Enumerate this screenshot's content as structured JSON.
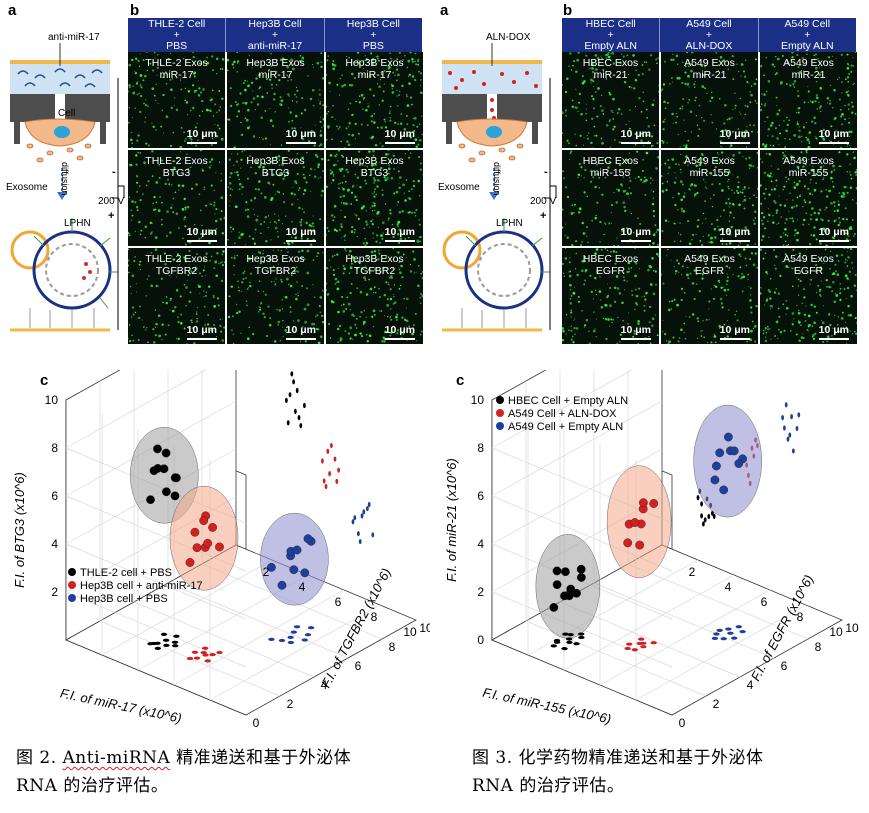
{
  "left_figure": {
    "panel_a_letter": "a",
    "panel_b_letter": "b",
    "panel_c_letter": "c",
    "schematic": {
      "top_label": "anti-miR-17",
      "cell_label": "Cell",
      "diffusion_label": "diffusion",
      "exosome_label": "Exosome",
      "lphn_label": "LPHN",
      "voltage_label": "200 V",
      "minus": "-",
      "plus": "+"
    },
    "column_headers": [
      {
        "line1": "THLE-2 Cell",
        "line2": "+",
        "line3": "PBS"
      },
      {
        "line1": "Hep3B Cell",
        "line2": "+",
        "line3": "anti-miR-17"
      },
      {
        "line1": "Hep3B Cell",
        "line2": "+",
        "line3": "PBS"
      }
    ],
    "tiles": [
      [
        {
          "l1": "THLE-2 Exos",
          "l2": "miR-17"
        },
        {
          "l1": "Hep3B Exos",
          "l2": "miR-17"
        },
        {
          "l1": "Hep3B Exos",
          "l2": "miR-17"
        }
      ],
      [
        {
          "l1": "THLE-2 Exos",
          "l2": "BTG3"
        },
        {
          "l1": "Hep3B Exos",
          "l2": "BTG3"
        },
        {
          "l1": "Hep3B Exos",
          "l2": "BTG3"
        }
      ],
      [
        {
          "l1": "THLE-2 Exos",
          "l2": "TGFBR2"
        },
        {
          "l1": "Hep3B Exos",
          "l2": "TGFBR2"
        },
        {
          "l1": "Hep3B Exos",
          "l2": "TGFBR2"
        }
      ]
    ],
    "scale_bar": "10 μm",
    "caption_prefix": "图  2. ",
    "caption_term": "Anti-miRNA",
    "caption_rest": " 精准递送和基于外泌体",
    "caption_line2": "RNA 的治疗评估。"
  },
  "right_figure": {
    "panel_a_letter": "a",
    "panel_b_letter": "b",
    "panel_c_letter": "c",
    "schematic": {
      "top_label": "ALN-DOX",
      "diffusion_label": "diffusion",
      "exosome_label": "Exosome",
      "lphn_label": "LPHN",
      "voltage_label": "200 V",
      "minus": "-",
      "plus": "+"
    },
    "column_headers": [
      {
        "line1": "HBEC Cell",
        "line2": "+",
        "line3": "Empty ALN"
      },
      {
        "line1": "A549 Cell",
        "line2": "+",
        "line3": "ALN-DOX"
      },
      {
        "line1": "A549 Cell",
        "line2": "+",
        "line3": "Empty ALN"
      }
    ],
    "tiles": [
      [
        {
          "l1": "HBEC Exos",
          "l2": "miR-21"
        },
        {
          "l1": "A549 Exos",
          "l2": "miR-21"
        },
        {
          "l1": "A549 Exos",
          "l2": "miR-21"
        }
      ],
      [
        {
          "l1": "HBEC Exos",
          "l2": "miR-155"
        },
        {
          "l1": "A549 Exos",
          "l2": "miR-155"
        },
        {
          "l1": "A549 Exos",
          "l2": "miR-155"
        }
      ],
      [
        {
          "l1": "HBEC Exos",
          "l2": "EGFR"
        },
        {
          "l1": "A549 Exos",
          "l2": "EGFR"
        },
        {
          "l1": "A549 Exos",
          "l2": "EGFR"
        }
      ]
    ],
    "scale_bar": "10 μm",
    "caption_line1": "图  3. 化学药物精准递送和基于外泌体",
    "caption_line2": "RNA 的治疗评估。"
  },
  "chart_data": [
    {
      "type": "scatter",
      "subtype": "3d-scatter",
      "title": "",
      "xlabel": "F.I. of miR-17 (x10^6)",
      "ylabel": "F.I. of TGFBR2 (x10^6)",
      "zlabel": "F.I. of BTG3 (x10^6)",
      "xlim": [
        0,
        10
      ],
      "ylim": [
        0,
        10
      ],
      "zlim": [
        0,
        10
      ],
      "x_ticks": [
        "2",
        "4",
        "6",
        "8",
        "10"
      ],
      "y_ticks": [
        "0",
        "2",
        "4",
        "6",
        "8",
        "10"
      ],
      "z_ticks": [
        "2",
        "4",
        "6",
        "8",
        "10"
      ],
      "legend_position": "left",
      "grid": true,
      "series": [
        {
          "name": "THLE-2 cell + PBS",
          "color": "#000000",
          "points": [
            [
              3,
              2,
              7.2
            ],
            [
              3.2,
              2.5,
              7.8
            ],
            [
              3.5,
              2.2,
              6.4
            ],
            [
              2.8,
              2.8,
              6.9
            ],
            [
              3.4,
              1.8,
              7.5
            ],
            [
              3.6,
              2.6,
              6.1
            ],
            [
              3.1,
              2.1,
              8.1
            ],
            [
              3.3,
              3,
              6.6
            ],
            [
              3.8,
              2.4,
              7.0
            ],
            [
              2.9,
              1.9,
              6.0
            ]
          ]
        },
        {
          "name": "Hep3B cell + anti-miR-17",
          "color": "#d42020",
          "points": [
            [
              4.8,
              2.5,
              5.0
            ],
            [
              5.2,
              2.2,
              4.6
            ],
            [
              5.5,
              2.8,
              5.3
            ],
            [
              4.9,
              3.0,
              4.2
            ],
            [
              5.3,
              2.6,
              5.8
            ],
            [
              5.7,
              2.3,
              4.9
            ],
            [
              5.0,
              2.0,
              4.0
            ],
            [
              5.6,
              3.1,
              4.4
            ],
            [
              5.1,
              2.7,
              5.5
            ]
          ]
        },
        {
          "name": "Hep3B cell + PBS",
          "color": "#1f3f9c",
          "points": [
            [
              6.5,
              5.2,
              3.0
            ],
            [
              7.0,
              5.8,
              3.4
            ],
            [
              6.8,
              6.2,
              2.6
            ],
            [
              7.3,
              5.5,
              3.8
            ],
            [
              6.6,
              6.6,
              3.2
            ],
            [
              7.6,
              6.0,
              2.8
            ],
            [
              7.1,
              6.9,
              3.6
            ],
            [
              6.9,
              5.4,
              2.3
            ],
            [
              7.4,
              6.4,
              4.0
            ]
          ]
        }
      ]
    },
    {
      "type": "scatter",
      "subtype": "3d-scatter",
      "title": "",
      "xlabel": "F.I. of miR-155 (x10^6)",
      "ylabel": "F.I. of EGFR (x10^6)",
      "zlabel": "F.I. of miR-21 (x10^6)",
      "xlim": [
        0,
        10
      ],
      "ylim": [
        0,
        10
      ],
      "zlim": [
        0,
        10
      ],
      "x_ticks": [
        "2",
        "4",
        "6",
        "8",
        "10"
      ],
      "y_ticks": [
        "0",
        "2",
        "4",
        "6",
        "8",
        "10"
      ],
      "z_ticks": [
        "0",
        "2",
        "4",
        "6",
        "8",
        "10"
      ],
      "legend_position": "top-left",
      "grid": true,
      "series": [
        {
          "name": "HBEC Cell + Empty ALN",
          "color": "#000000",
          "points": [
            [
              2.2,
              1.5,
              2.4
            ],
            [
              2.6,
              1.8,
              2.0
            ],
            [
              2.0,
              2.2,
              2.6
            ],
            [
              2.8,
              1.3,
              2.2
            ],
            [
              2.4,
              2.0,
              1.8
            ],
            [
              2.1,
              1.6,
              2.9
            ],
            [
              2.7,
              2.4,
              2.5
            ],
            [
              2.3,
              1.2,
              1.6
            ],
            [
              2.9,
              1.9,
              2.1
            ],
            [
              2.5,
              2.6,
              2.7
            ],
            [
              2.2,
              2.3,
              1.9
            ]
          ]
        },
        {
          "name": "A549 Cell + ALN-DOX",
          "color": "#d42020",
          "points": [
            [
              4.6,
              3.2,
              5.0
            ],
            [
              5.0,
              3.6,
              5.6
            ],
            [
              4.8,
              2.9,
              4.4
            ],
            [
              5.2,
              3.4,
              6.0
            ],
            [
              4.7,
              3.8,
              4.8
            ],
            [
              5.1,
              3.0,
              5.3
            ],
            [
              4.9,
              3.5,
              4.1
            ],
            [
              5.3,
              3.9,
              5.8
            ]
          ]
        },
        {
          "name": "A549 Cell + Empty ALN",
          "color": "#1f3f9c",
          "points": [
            [
              6.8,
              6.0,
              7.0
            ],
            [
              7.2,
              6.4,
              7.6
            ],
            [
              7.0,
              5.7,
              6.6
            ],
            [
              7.5,
              6.8,
              7.2
            ],
            [
              6.9,
              6.6,
              8.0
            ],
            [
              7.3,
              5.9,
              6.2
            ],
            [
              7.6,
              6.2,
              7.8
            ],
            [
              7.1,
              7.0,
              6.8
            ],
            [
              6.7,
              6.3,
              7.4
            ]
          ]
        }
      ]
    }
  ]
}
